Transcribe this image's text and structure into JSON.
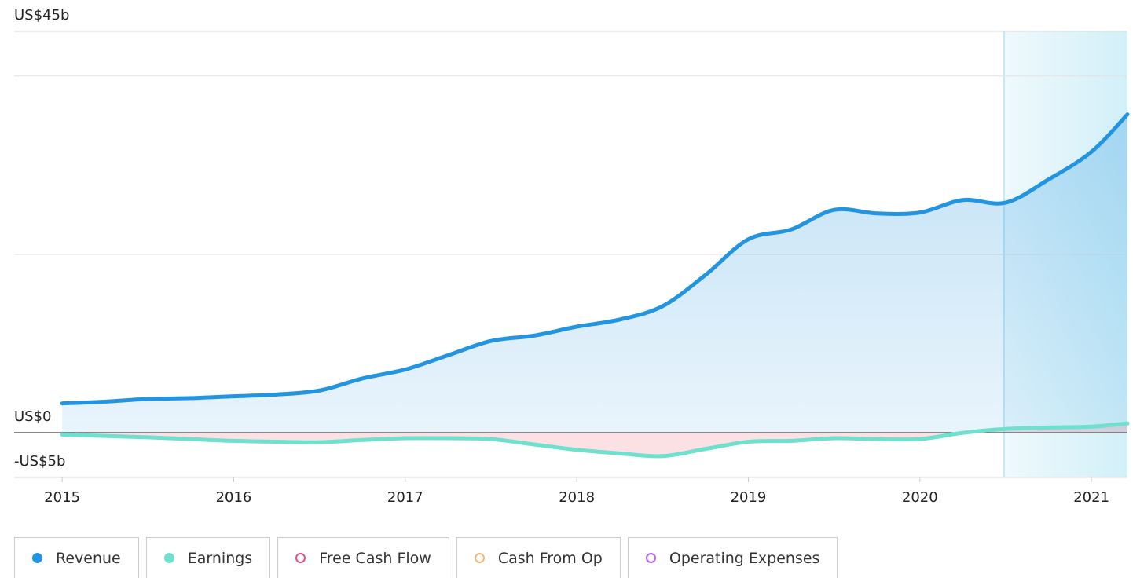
{
  "chart_data": {
    "type": "line",
    "x": [
      2015,
      2015.25,
      2015.5,
      2015.75,
      2016,
      2016.25,
      2016.5,
      2016.75,
      2017,
      2017.25,
      2017.5,
      2017.75,
      2018,
      2018.25,
      2018.5,
      2018.75,
      2019,
      2019.25,
      2019.5,
      2019.75,
      2020,
      2020.25,
      2020.5,
      2020.75,
      2021,
      2021.21
    ],
    "series": [
      {
        "name": "Revenue",
        "color": "#2394df",
        "values": [
          3.3,
          3.5,
          3.8,
          3.9,
          4.1,
          4.3,
          4.75,
          6.1,
          7.1,
          8.7,
          10.3,
          10.9,
          11.9,
          12.7,
          14.2,
          17.7,
          21.7,
          22.8,
          25.0,
          24.6,
          24.7,
          26.1,
          25.8,
          28.4,
          31.5,
          35.7
        ]
      },
      {
        "name": "Earnings",
        "color": "#6ee0cd",
        "values": [
          -0.2,
          -0.35,
          -0.5,
          -0.7,
          -0.9,
          -1.0,
          -1.05,
          -0.8,
          -0.6,
          -0.6,
          -0.7,
          -1.3,
          -1.9,
          -2.3,
          -2.6,
          -1.8,
          -1.0,
          -0.9,
          -0.6,
          -0.7,
          -0.7,
          0,
          0.44,
          0.6,
          0.7,
          1.06
        ]
      }
    ],
    "inactive_series": [
      {
        "name": "Free Cash Flow",
        "color": "#d9578a"
      },
      {
        "name": "Cash From Op",
        "color": "#f0b97a"
      },
      {
        "name": "Operating Expenses",
        "color": "#b066e8"
      }
    ],
    "xlim": [
      2014.72,
      2021.21
    ],
    "xticks": [
      2015,
      2016,
      2017,
      2018,
      2019,
      2020,
      2021
    ],
    "ylim": [
      -5,
      45
    ],
    "yticks": [
      {
        "value": 45,
        "label": "US$45b"
      },
      {
        "value": 0,
        "label": "US$0"
      },
      {
        "value": -5,
        "label": "-US$5b"
      }
    ],
    "ygrid": [
      20,
      40
    ],
    "highlight_from": 2020.49
  }
}
